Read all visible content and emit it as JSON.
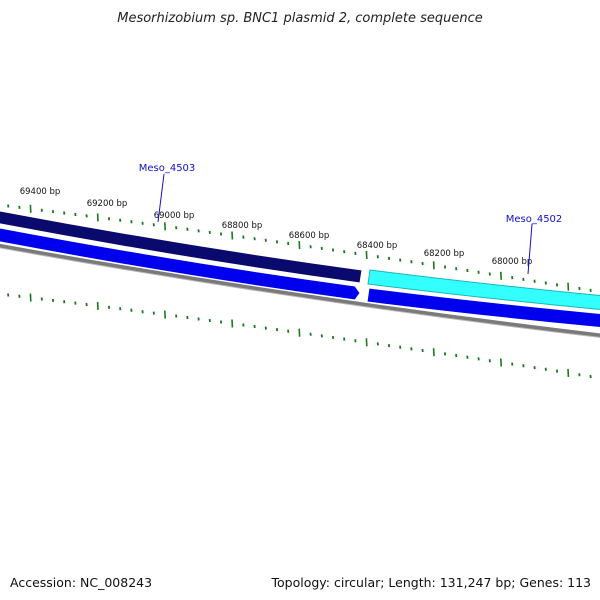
{
  "title": "Mesorhizobium sp. BNC1 plasmid 2, complete sequence",
  "ruler": {
    "labels": [
      "69400 bp",
      "69200 bp",
      "69000 bp",
      "68800 bp",
      "68600 bp",
      "68400 bp",
      "68200 bp",
      "68000 bp"
    ]
  },
  "genes": [
    {
      "name": "Meso_4503"
    },
    {
      "name": "Meso_4502"
    }
  ],
  "colors": {
    "forward_gene_dark": "#0a0a6e",
    "forward_gene_cyan": "#33ffff",
    "reverse_gene": "#0000ee",
    "backbone": "#7a7a7a",
    "ticks": "#1a7a1a",
    "label_blue": "#1010c8"
  },
  "footer": {
    "accession": "Accession: NC_008243",
    "summary": "Topology: circular; Length: 131,247 bp; Genes: 113"
  }
}
